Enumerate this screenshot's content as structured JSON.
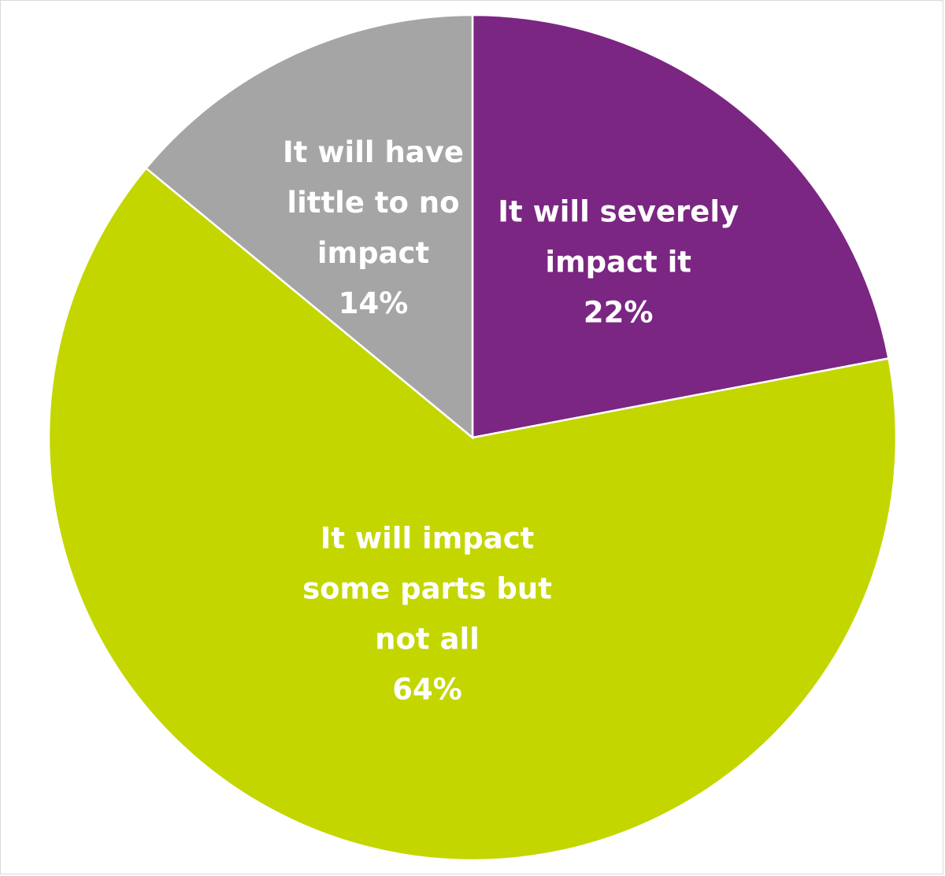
{
  "chart_data": {
    "type": "pie",
    "start_angle_deg": 0,
    "direction": "clockwise",
    "slices": [
      {
        "label_lines": [
          "It will severely",
          "impact it"
        ],
        "value_label": "22%",
        "value": 22,
        "color": "#7b2682"
      },
      {
        "label_lines": [
          "It will impact",
          "some parts but",
          "not all"
        ],
        "value_label": "64%",
        "value": 64,
        "color": "#c3d600"
      },
      {
        "label_lines": [
          "It will have",
          "little to no",
          "impact"
        ],
        "value_label": "14%",
        "value": 14,
        "color": "#a5a5a5"
      }
    ]
  }
}
